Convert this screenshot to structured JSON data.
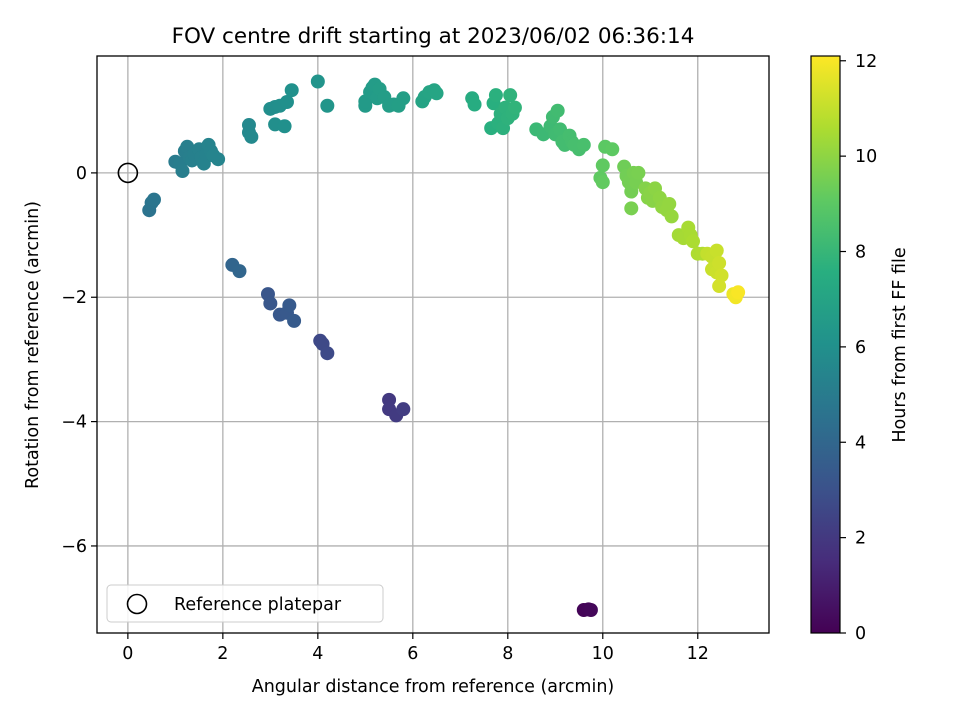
{
  "chart_data": {
    "type": "scatter",
    "title": "FOV centre drift starting at 2023/06/02 06:36:14",
    "xlabel": "Angular distance from reference (arcmin)",
    "ylabel": "Rotation from reference (arcmin)",
    "xlim": [
      -0.65,
      13.5
    ],
    "ylim": [
      -7.4,
      1.88
    ],
    "xticks": [
      0,
      2,
      4,
      6,
      8,
      10,
      12
    ],
    "yticks": [
      -6,
      -4,
      -2,
      0
    ],
    "grid": true,
    "legend": {
      "placement": "lower-left",
      "entries": [
        {
          "label": "Reference platepar",
          "marker": "open-circle"
        }
      ]
    },
    "reference_point": {
      "x": 0,
      "y": 0
    },
    "colorbar": {
      "label": "Hours from first FF file",
      "min": 0,
      "max": 12.1,
      "ticks": [
        0,
        2,
        4,
        6,
        8,
        10,
        12
      ],
      "colormap": "viridis"
    },
    "points": [
      {
        "x": 9.6,
        "y": -7.03,
        "h": 0.1
      },
      {
        "x": 9.7,
        "y": -7.02,
        "h": 0.15
      },
      {
        "x": 9.75,
        "y": -7.03,
        "h": 0.2
      },
      {
        "x": 5.5,
        "y": -3.65,
        "h": 2.0
      },
      {
        "x": 5.5,
        "y": -3.8,
        "h": 2.05
      },
      {
        "x": 5.65,
        "y": -3.9,
        "h": 2.1
      },
      {
        "x": 5.8,
        "y": -3.8,
        "h": 2.15
      },
      {
        "x": 4.05,
        "y": -2.7,
        "h": 2.6
      },
      {
        "x": 4.1,
        "y": -2.75,
        "h": 2.65
      },
      {
        "x": 4.2,
        "y": -2.9,
        "h": 2.7
      },
      {
        "x": 2.95,
        "y": -1.95,
        "h": 3.2
      },
      {
        "x": 3.0,
        "y": -2.1,
        "h": 3.25
      },
      {
        "x": 3.2,
        "y": -2.28,
        "h": 3.3
      },
      {
        "x": 3.35,
        "y": -2.25,
        "h": 3.35
      },
      {
        "x": 3.4,
        "y": -2.13,
        "h": 3.4
      },
      {
        "x": 3.5,
        "y": -2.38,
        "h": 3.45
      },
      {
        "x": 2.2,
        "y": -1.48,
        "h": 3.9
      },
      {
        "x": 2.35,
        "y": -1.58,
        "h": 3.95
      },
      {
        "x": 0.45,
        "y": -0.6,
        "h": 4.6
      },
      {
        "x": 0.5,
        "y": -0.48,
        "h": 4.65
      },
      {
        "x": 0.55,
        "y": -0.43,
        "h": 4.7
      },
      {
        "x": 1.0,
        "y": 0.18,
        "h": 5.0
      },
      {
        "x": 1.1,
        "y": 0.15,
        "h": 5.05
      },
      {
        "x": 1.15,
        "y": 0.03,
        "h": 5.1
      },
      {
        "x": 1.2,
        "y": 0.35,
        "h": 5.1
      },
      {
        "x": 1.25,
        "y": 0.42,
        "h": 5.15
      },
      {
        "x": 1.3,
        "y": 0.25,
        "h": 5.15
      },
      {
        "x": 1.35,
        "y": 0.2,
        "h": 5.2
      },
      {
        "x": 1.4,
        "y": 0.3,
        "h": 5.2
      },
      {
        "x": 1.5,
        "y": 0.38,
        "h": 5.25
      },
      {
        "x": 1.55,
        "y": 0.25,
        "h": 5.25
      },
      {
        "x": 1.6,
        "y": 0.15,
        "h": 5.3
      },
      {
        "x": 1.65,
        "y": 0.3,
        "h": 5.3
      },
      {
        "x": 1.7,
        "y": 0.45,
        "h": 5.35
      },
      {
        "x": 1.75,
        "y": 0.35,
        "h": 5.35
      },
      {
        "x": 1.8,
        "y": 0.28,
        "h": 5.4
      },
      {
        "x": 1.9,
        "y": 0.22,
        "h": 5.4
      },
      {
        "x": 2.55,
        "y": 0.77,
        "h": 5.6
      },
      {
        "x": 2.55,
        "y": 0.65,
        "h": 5.6
      },
      {
        "x": 2.6,
        "y": 0.58,
        "h": 5.65
      },
      {
        "x": 3.0,
        "y": 1.03,
        "h": 5.9
      },
      {
        "x": 3.1,
        "y": 1.06,
        "h": 5.9
      },
      {
        "x": 3.1,
        "y": 0.78,
        "h": 5.95
      },
      {
        "x": 3.2,
        "y": 1.08,
        "h": 5.95
      },
      {
        "x": 3.3,
        "y": 0.75,
        "h": 6.0
      },
      {
        "x": 3.35,
        "y": 1.14,
        "h": 6.0
      },
      {
        "x": 3.45,
        "y": 1.33,
        "h": 6.05
      },
      {
        "x": 4.0,
        "y": 1.47,
        "h": 6.2
      },
      {
        "x": 4.2,
        "y": 1.08,
        "h": 6.25
      },
      {
        "x": 5.0,
        "y": 1.08,
        "h": 6.5
      },
      {
        "x": 5.0,
        "y": 1.15,
        "h": 6.5
      },
      {
        "x": 5.1,
        "y": 1.3,
        "h": 6.55
      },
      {
        "x": 5.15,
        "y": 1.37,
        "h": 6.55
      },
      {
        "x": 5.2,
        "y": 1.42,
        "h": 6.6
      },
      {
        "x": 5.25,
        "y": 1.2,
        "h": 6.6
      },
      {
        "x": 5.3,
        "y": 1.35,
        "h": 6.65
      },
      {
        "x": 5.4,
        "y": 1.22,
        "h": 6.65
      },
      {
        "x": 5.5,
        "y": 1.08,
        "h": 6.7
      },
      {
        "x": 5.6,
        "y": 1.1,
        "h": 6.7
      },
      {
        "x": 5.7,
        "y": 1.08,
        "h": 6.75
      },
      {
        "x": 5.8,
        "y": 1.2,
        "h": 6.75
      },
      {
        "x": 6.2,
        "y": 1.15,
        "h": 7.0
      },
      {
        "x": 6.25,
        "y": 1.22,
        "h": 7.0
      },
      {
        "x": 6.35,
        "y": 1.3,
        "h": 7.05
      },
      {
        "x": 6.45,
        "y": 1.33,
        "h": 7.05
      },
      {
        "x": 6.5,
        "y": 1.28,
        "h": 7.1
      },
      {
        "x": 7.25,
        "y": 1.2,
        "h": 7.4
      },
      {
        "x": 7.3,
        "y": 1.1,
        "h": 7.45
      },
      {
        "x": 7.65,
        "y": 0.72,
        "h": 7.6
      },
      {
        "x": 7.7,
        "y": 1.12,
        "h": 7.6
      },
      {
        "x": 7.75,
        "y": 1.25,
        "h": 7.65
      },
      {
        "x": 7.8,
        "y": 0.8,
        "h": 7.65
      },
      {
        "x": 7.85,
        "y": 0.95,
        "h": 7.7
      },
      {
        "x": 7.9,
        "y": 0.72,
        "h": 7.7
      },
      {
        "x": 7.95,
        "y": 1.05,
        "h": 7.75
      },
      {
        "x": 8.0,
        "y": 0.88,
        "h": 7.75
      },
      {
        "x": 8.05,
        "y": 1.25,
        "h": 7.8
      },
      {
        "x": 8.1,
        "y": 0.95,
        "h": 7.8
      },
      {
        "x": 8.15,
        "y": 1.05,
        "h": 7.85
      },
      {
        "x": 8.6,
        "y": 0.7,
        "h": 8.1
      },
      {
        "x": 8.75,
        "y": 0.62,
        "h": 8.15
      },
      {
        "x": 8.9,
        "y": 0.75,
        "h": 8.2
      },
      {
        "x": 8.95,
        "y": 0.9,
        "h": 8.25
      },
      {
        "x": 9.0,
        "y": 0.62,
        "h": 8.25
      },
      {
        "x": 9.05,
        "y": 1.0,
        "h": 8.3
      },
      {
        "x": 9.1,
        "y": 0.7,
        "h": 8.3
      },
      {
        "x": 9.15,
        "y": 0.5,
        "h": 8.35
      },
      {
        "x": 9.2,
        "y": 0.45,
        "h": 8.35
      },
      {
        "x": 9.3,
        "y": 0.6,
        "h": 8.4
      },
      {
        "x": 9.35,
        "y": 0.5,
        "h": 8.4
      },
      {
        "x": 9.4,
        "y": 0.45,
        "h": 8.45
      },
      {
        "x": 9.5,
        "y": 0.38,
        "h": 8.45
      },
      {
        "x": 9.6,
        "y": 0.45,
        "h": 8.5
      },
      {
        "x": 10.05,
        "y": 0.42,
        "h": 9.0
      },
      {
        "x": 10.2,
        "y": 0.38,
        "h": 9.05
      },
      {
        "x": 10.0,
        "y": 0.12,
        "h": 9.1
      },
      {
        "x": 9.95,
        "y": -0.08,
        "h": 9.1
      },
      {
        "x": 10.0,
        "y": -0.15,
        "h": 9.15
      },
      {
        "x": 10.45,
        "y": 0.1,
        "h": 9.4
      },
      {
        "x": 10.5,
        "y": -0.05,
        "h": 9.45
      },
      {
        "x": 10.55,
        "y": -0.15,
        "h": 9.5
      },
      {
        "x": 10.6,
        "y": -0.3,
        "h": 9.5
      },
      {
        "x": 10.65,
        "y": 0.0,
        "h": 9.55
      },
      {
        "x": 10.7,
        "y": -0.15,
        "h": 9.55
      },
      {
        "x": 10.75,
        "y": 0.0,
        "h": 9.6
      },
      {
        "x": 10.6,
        "y": -0.57,
        "h": 9.6
      },
      {
        "x": 10.9,
        "y": -0.25,
        "h": 9.8
      },
      {
        "x": 10.95,
        "y": -0.4,
        "h": 9.85
      },
      {
        "x": 11.0,
        "y": -0.32,
        "h": 9.9
      },
      {
        "x": 11.05,
        "y": -0.45,
        "h": 9.9
      },
      {
        "x": 11.1,
        "y": -0.25,
        "h": 9.95
      },
      {
        "x": 11.2,
        "y": -0.4,
        "h": 10.0
      },
      {
        "x": 11.25,
        "y": -0.55,
        "h": 10.05
      },
      {
        "x": 11.35,
        "y": -0.6,
        "h": 10.1
      },
      {
        "x": 11.4,
        "y": -0.5,
        "h": 10.1
      },
      {
        "x": 11.45,
        "y": -0.7,
        "h": 10.15
      },
      {
        "x": 11.6,
        "y": -1.0,
        "h": 10.4
      },
      {
        "x": 11.7,
        "y": -1.05,
        "h": 10.45
      },
      {
        "x": 11.8,
        "y": -0.88,
        "h": 10.5
      },
      {
        "x": 11.85,
        "y": -1.0,
        "h": 10.5
      },
      {
        "x": 11.9,
        "y": -1.1,
        "h": 10.55
      },
      {
        "x": 12.0,
        "y": -1.3,
        "h": 10.6
      },
      {
        "x": 12.1,
        "y": -1.3,
        "h": 10.65
      },
      {
        "x": 12.2,
        "y": -1.3,
        "h": 11.0
      },
      {
        "x": 12.3,
        "y": -1.35,
        "h": 11.05
      },
      {
        "x": 12.3,
        "y": -1.55,
        "h": 11.1
      },
      {
        "x": 12.4,
        "y": -1.25,
        "h": 11.1
      },
      {
        "x": 12.4,
        "y": -1.6,
        "h": 11.15
      },
      {
        "x": 12.45,
        "y": -1.45,
        "h": 11.2
      },
      {
        "x": 12.5,
        "y": -1.65,
        "h": 11.25
      },
      {
        "x": 12.45,
        "y": -1.82,
        "h": 11.3
      },
      {
        "x": 12.75,
        "y": -1.95,
        "h": 11.8
      },
      {
        "x": 12.8,
        "y": -2.0,
        "h": 11.9
      },
      {
        "x": 12.85,
        "y": -1.92,
        "h": 12.0
      }
    ]
  }
}
